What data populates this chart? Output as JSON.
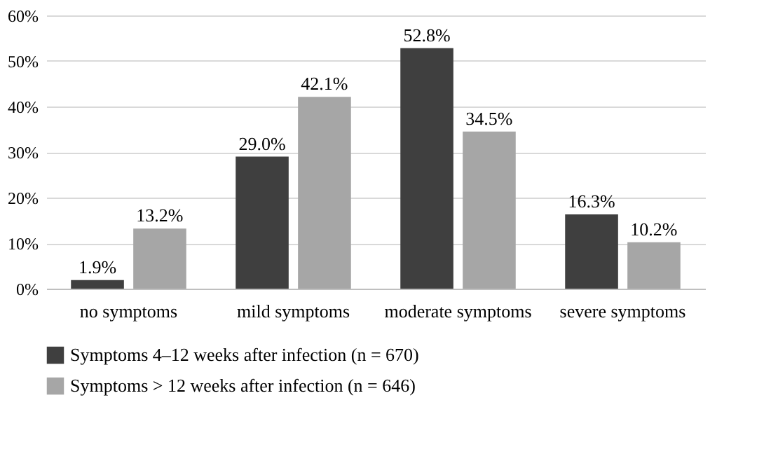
{
  "chart_data": {
    "type": "bar",
    "categories": [
      "no symptoms",
      "mild symptoms",
      "moderate symptoms",
      "severe symptoms"
    ],
    "series": [
      {
        "name": "Symptoms 4–12 weeks after infection (n = 670)",
        "color": "#3f3f3f",
        "values": [
          1.9,
          29.0,
          52.8,
          16.3
        ],
        "value_labels": [
          "1.9%",
          "29.0%",
          "52.8%",
          "16.3%"
        ]
      },
      {
        "name": "Symptoms > 12 weeks after infection (n = 646)",
        "color": "#a6a6a6",
        "values": [
          13.2,
          42.1,
          34.5,
          10.2
        ],
        "value_labels": [
          "13.2%",
          "42.1%",
          "34.5%",
          "10.2%"
        ]
      }
    ],
    "ylim": [
      0,
      60
    ],
    "yticks": [
      {
        "value": 0,
        "label": "0%"
      },
      {
        "value": 10,
        "label": "10%"
      },
      {
        "value": 20,
        "label": "20%"
      },
      {
        "value": 30,
        "label": "30%"
      },
      {
        "value": 40,
        "label": "40%"
      },
      {
        "value": 50,
        "label": "50%"
      },
      {
        "value": 60,
        "label": "60%"
      }
    ],
    "grid": "y",
    "legend": "bottom"
  }
}
